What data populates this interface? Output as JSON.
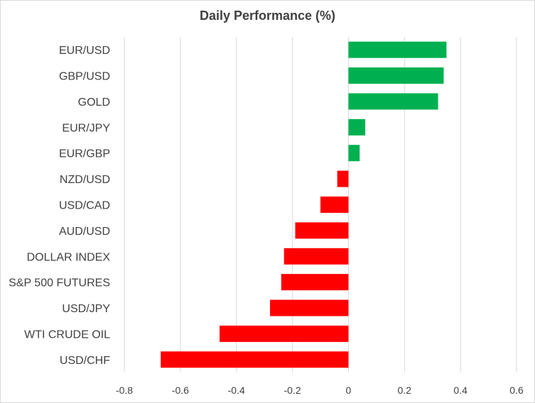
{
  "chart_data": {
    "type": "bar",
    "orientation": "horizontal",
    "title": "Daily Performance  (%)",
    "categories": [
      "EUR/USD",
      "GBP/USD",
      "GOLD",
      "EUR/JPY",
      "EUR/GBP",
      "NZD/USD",
      "USD/CAD",
      "AUD/USD",
      "DOLLAR INDEX",
      "S&P 500 FUTURES",
      "USD/JPY",
      "WTI CRUDE OIL",
      "USD/CHF"
    ],
    "values": [
      0.35,
      0.34,
      0.32,
      0.06,
      0.04,
      -0.04,
      -0.1,
      -0.19,
      -0.23,
      -0.24,
      -0.28,
      -0.46,
      -0.67
    ],
    "xlim": [
      -0.8,
      0.6
    ],
    "xticks": [
      "-0.8",
      "-0.6",
      "-0.4",
      "-0.2",
      "0",
      "0.2",
      "0.4",
      "0.6"
    ],
    "grid": true,
    "colors": {
      "positive": "#00b050",
      "negative": "#ff0000",
      "grid": "#d9d9d9",
      "text": "#404040"
    }
  }
}
